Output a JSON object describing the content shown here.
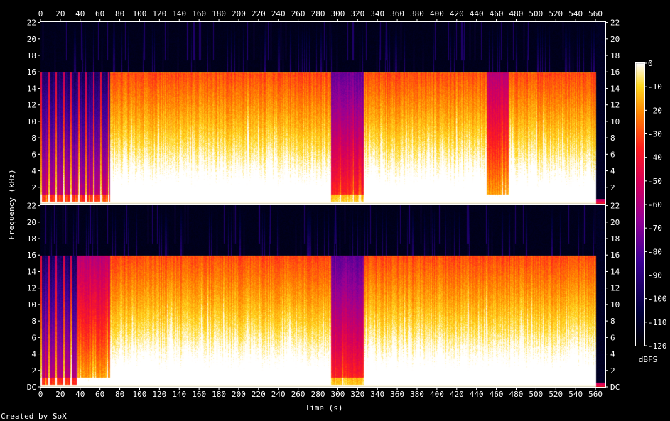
{
  "chart_data": {
    "type": "heatmap",
    "xlabel": "Time (s)",
    "ylabel": "Frequency (kHz)",
    "x_ticks": [
      0,
      20,
      40,
      60,
      80,
      100,
      120,
      140,
      160,
      180,
      200,
      220,
      240,
      260,
      280,
      300,
      320,
      340,
      360,
      380,
      400,
      420,
      440,
      460,
      480,
      500,
      520,
      540,
      560
    ],
    "xlim": [
      0,
      570
    ],
    "channels": [
      {
        "y_ticks": [
          "22",
          "20",
          "18",
          "16",
          "14",
          "12",
          "10",
          "8",
          "6",
          "4",
          "2"
        ],
        "ylim": [
          0,
          22.05
        ],
        "sections": [
          {
            "t_start": 0,
            "t_end": 70,
            "cutoff_khz": 16,
            "description_level": "sparse"
          },
          {
            "t_start": 70,
            "t_end": 293,
            "cutoff_khz": 16,
            "description_level": "dense"
          },
          {
            "t_start": 293,
            "t_end": 326,
            "cutoff_khz": 16,
            "description_level": "quiet"
          },
          {
            "t_start": 326,
            "t_end": 450,
            "cutoff_khz": 16,
            "description_level": "dense"
          },
          {
            "t_start": 450,
            "t_end": 472,
            "cutoff_khz": 16,
            "description_level": "medium"
          },
          {
            "t_start": 472,
            "t_end": 560,
            "cutoff_khz": 16,
            "description_level": "dense"
          }
        ]
      },
      {
        "y_ticks": [
          "22",
          "20",
          "18",
          "16",
          "14",
          "12",
          "10",
          "8",
          "6",
          "4",
          "2",
          "DC"
        ],
        "ylim": [
          0,
          22.05
        ],
        "sections": [
          {
            "t_start": 0,
            "t_end": 36,
            "cutoff_khz": 16,
            "description_level": "sparse"
          },
          {
            "t_start": 36,
            "t_end": 70,
            "cutoff_khz": 16,
            "description_level": "medium"
          },
          {
            "t_start": 70,
            "t_end": 293,
            "cutoff_khz": 16,
            "description_level": "dense"
          },
          {
            "t_start": 293,
            "t_end": 326,
            "cutoff_khz": 16,
            "description_level": "quiet"
          },
          {
            "t_start": 326,
            "t_end": 560,
            "cutoff_khz": 16,
            "description_level": "dense"
          }
        ]
      }
    ],
    "colorbar": {
      "unit": "dBFS",
      "ticks": [
        "0",
        "-10",
        "-20",
        "-30",
        "-40",
        "-50",
        "-60",
        "-70",
        "-80",
        "-90",
        "-100",
        "-110",
        "-120"
      ],
      "range": [
        -120,
        0
      ]
    }
  },
  "footer": {
    "credit": "Created by SoX"
  }
}
